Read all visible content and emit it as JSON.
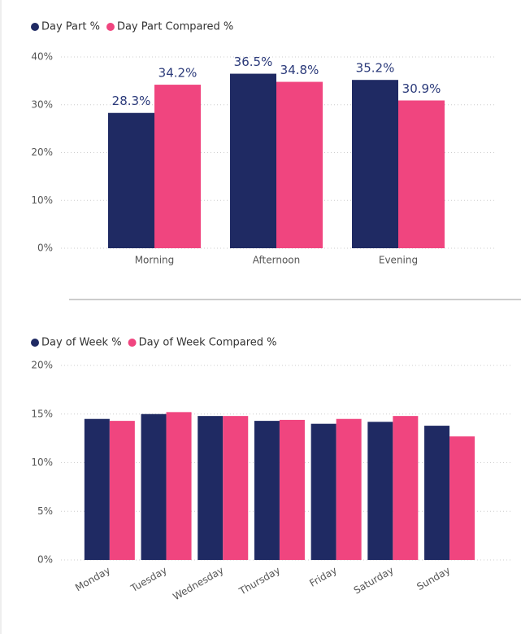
{
  "chart_data": [
    {
      "type": "bar",
      "categories": [
        "Morning",
        "Afternoon",
        "Evening"
      ],
      "series": [
        {
          "name": "Day Part %",
          "color": "#1f2a63",
          "values": [
            28.3,
            36.5,
            35.2
          ],
          "value_labels": [
            "28.3%",
            "36.5%",
            "35.2%"
          ]
        },
        {
          "name": "Day Part Compared %",
          "color": "#f0457f",
          "values": [
            34.2,
            34.8,
            30.9
          ],
          "value_labels": [
            "34.2%",
            "34.8%",
            "30.9%"
          ]
        }
      ],
      "ylim": [
        0,
        40
      ],
      "yticks": [
        {
          "value": 0,
          "label": "0%"
        },
        {
          "value": 10,
          "label": "10%"
        },
        {
          "value": 20,
          "label": "20%"
        },
        {
          "value": 30,
          "label": "30%"
        },
        {
          "value": 40,
          "label": "40%"
        }
      ],
      "grid": true,
      "legend": "top-left"
    },
    {
      "type": "bar",
      "categories": [
        "Monday",
        "Tuesday",
        "Wednesday",
        "Thursday",
        "Friday",
        "Saturday",
        "Sunday"
      ],
      "series": [
        {
          "name": "Day of Week %",
          "color": "#1f2a63",
          "values": [
            14.5,
            15.0,
            14.8,
            14.3,
            14.0,
            14.2,
            13.8
          ]
        },
        {
          "name": "Day of Week Compared %",
          "color": "#f0457f",
          "values": [
            14.3,
            15.2,
            14.8,
            14.4,
            14.5,
            14.8,
            12.7
          ]
        }
      ],
      "ylim": [
        0,
        20
      ],
      "yticks": [
        {
          "value": 0,
          "label": "0%"
        },
        {
          "value": 5,
          "label": "5%"
        },
        {
          "value": 10,
          "label": "10%"
        },
        {
          "value": 15,
          "label": "15%"
        },
        {
          "value": 20,
          "label": "20%"
        }
      ],
      "grid": true,
      "legend": "top-left"
    }
  ]
}
